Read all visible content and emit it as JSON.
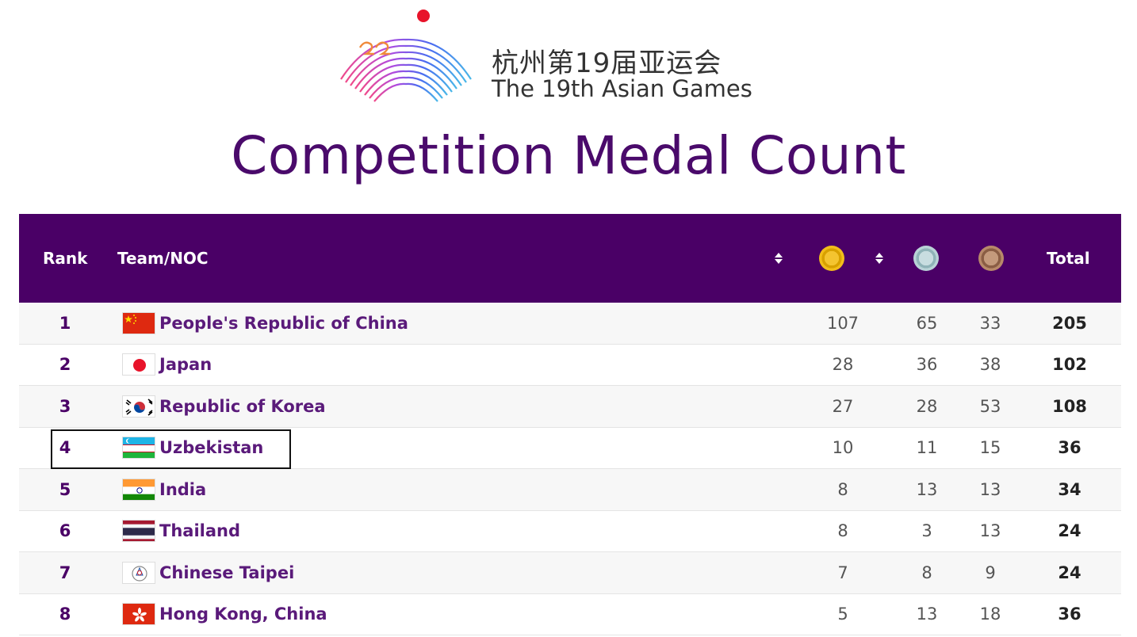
{
  "header": {
    "logo_cn": "杭州第19届亚运会",
    "logo_en": "The 19th Asian Games",
    "logo_dot_color": "#e8132a"
  },
  "page_title": "Competition Medal Count",
  "table": {
    "columns": {
      "rank": "Rank",
      "team": "Team/NOC",
      "gold_icon": "gold-medal-icon",
      "silver_icon": "silver-medal-icon",
      "bronze_icon": "bronze-medal-icon",
      "total": "Total"
    },
    "header_bg": "#4a0066",
    "rows": [
      {
        "rank": "1",
        "team": "People's Republic of China",
        "flag": "china-flag-icon",
        "gold": "107",
        "silver": "65",
        "bronze": "33",
        "total": "205"
      },
      {
        "rank": "2",
        "team": "Japan",
        "flag": "japan-flag-icon",
        "gold": "28",
        "silver": "36",
        "bronze": "38",
        "total": "102"
      },
      {
        "rank": "3",
        "team": "Republic of Korea",
        "flag": "korea-flag-icon",
        "gold": "27",
        "silver": "28",
        "bronze": "53",
        "total": "108"
      },
      {
        "rank": "4",
        "team": "Uzbekistan",
        "flag": "uzbekistan-flag-icon",
        "gold": "10",
        "silver": "11",
        "bronze": "15",
        "total": "36"
      },
      {
        "rank": "5",
        "team": "India",
        "flag": "india-flag-icon",
        "gold": "8",
        "silver": "13",
        "bronze": "13",
        "total": "34"
      },
      {
        "rank": "6",
        "team": "Thailand",
        "flag": "thailand-flag-icon",
        "gold": "8",
        "silver": "3",
        "bronze": "13",
        "total": "24"
      },
      {
        "rank": "7",
        "team": "Chinese Taipei",
        "flag": "chinese-taipei-flag-icon",
        "gold": "7",
        "silver": "8",
        "bronze": "9",
        "total": "24"
      },
      {
        "rank": "8",
        "team": "Hong Kong, China",
        "flag": "hong-kong-flag-icon",
        "gold": "5",
        "silver": "13",
        "bronze": "18",
        "total": "36"
      }
    ]
  }
}
